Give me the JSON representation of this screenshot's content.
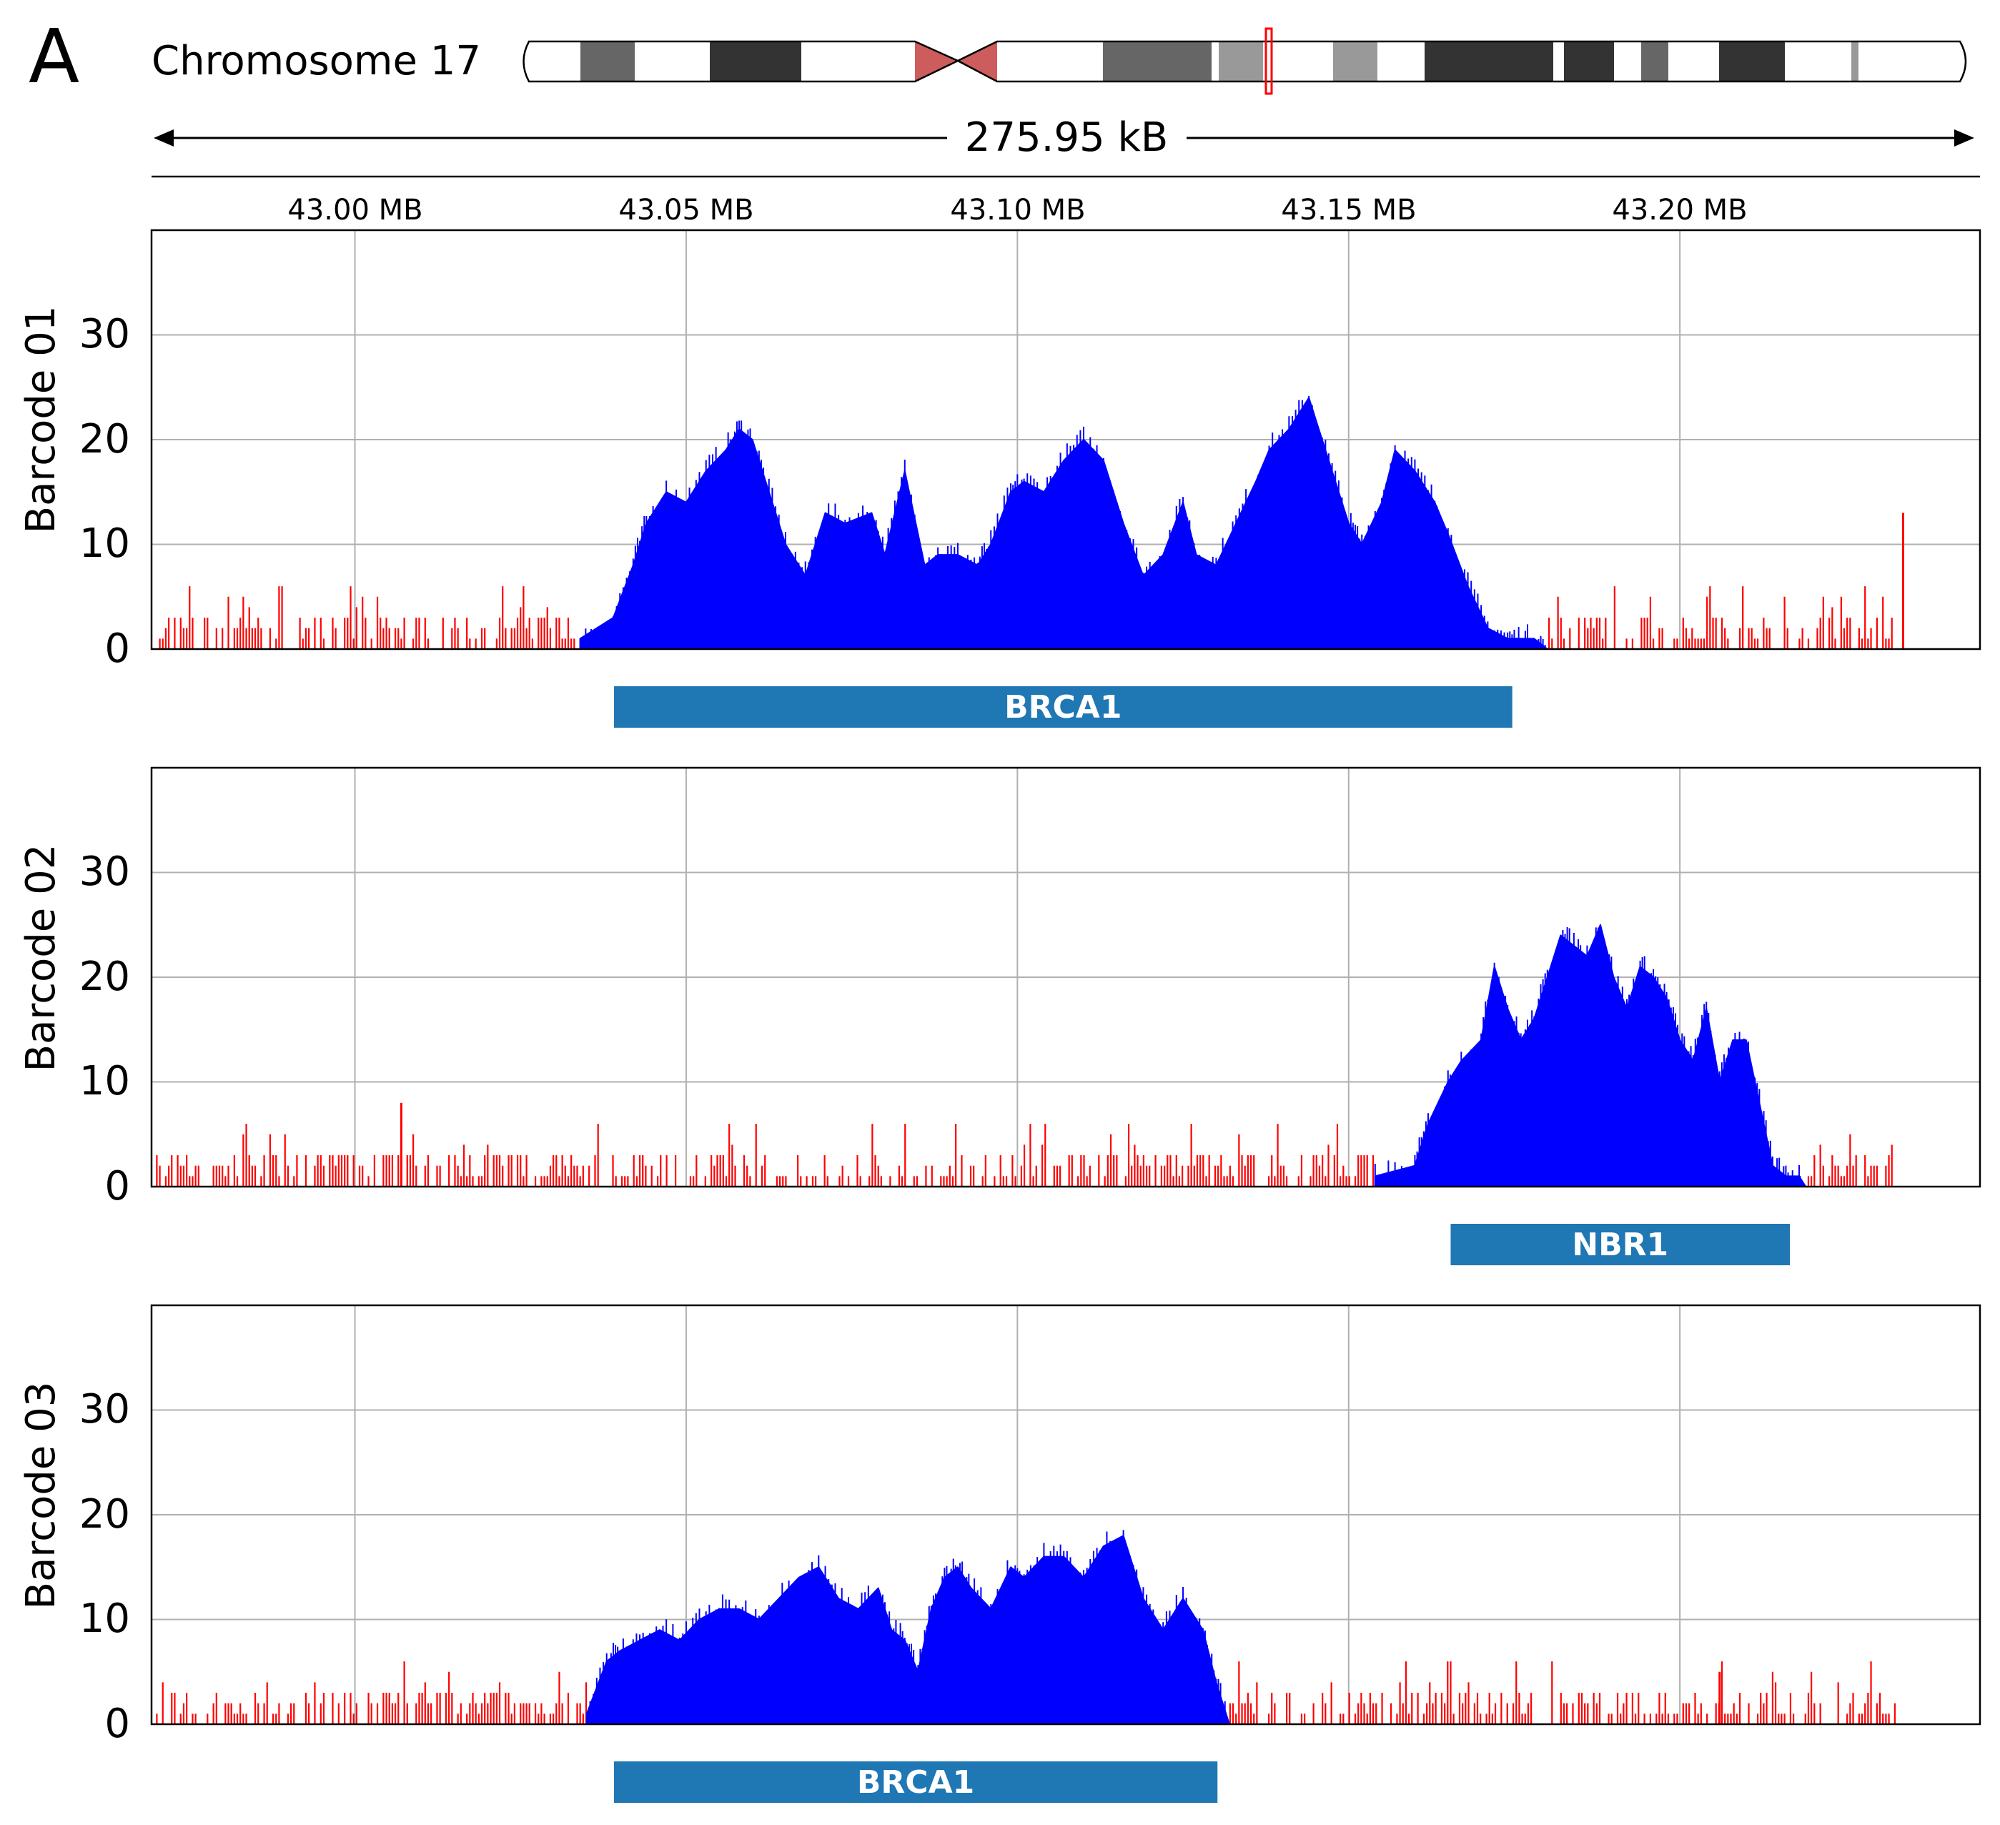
{
  "panel_letter": "A",
  "chromosome_label": "Chromosome 17",
  "span_label": "275.95 kB",
  "colors": {
    "coverage_on_target": "#0000ff",
    "coverage_off_target": "#ff0000",
    "gene_bar": "#1f77b4",
    "centromere": "#cd5c5c",
    "region_marker": "#ff0000",
    "grid": "#b0b0b0"
  },
  "chart_data": [
    {
      "type": "area",
      "ylabel": "Barcode 01",
      "x_ticks": [
        "43.00 MB",
        "43.05 MB",
        "43.10 MB",
        "43.15 MB",
        "43.20 MB"
      ],
      "x_tick_values_mb": [
        43.0,
        43.05,
        43.1,
        43.15,
        43.2
      ],
      "xlim_mb": [
        42.9693,
        43.2453
      ],
      "ylim": [
        0,
        40
      ],
      "y_ticks": [
        0,
        10,
        20,
        30
      ],
      "grid": true,
      "target_gene": {
        "name": "BRCA1",
        "start_mb": 43.0391,
        "end_mb": 43.1747
      },
      "on_target_region_mb": [
        43.034,
        43.18
      ],
      "coverage_profile": {
        "x_mb": [
          43.034,
          43.039,
          43.042,
          43.044,
          43.047,
          43.05,
          43.053,
          43.056,
          43.058,
          43.06,
          43.062,
          43.065,
          43.068,
          43.071,
          43.074,
          43.078,
          43.08,
          43.083,
          43.086,
          43.088,
          43.091,
          43.094,
          43.096,
          43.099,
          43.101,
          43.104,
          43.107,
          43.11,
          43.113,
          43.116,
          43.119,
          43.122,
          43.125,
          43.127,
          43.13,
          43.133,
          43.136,
          43.138,
          43.141,
          43.144,
          43.147,
          43.15,
          43.152,
          43.155,
          43.157,
          43.16,
          43.163,
          43.165,
          43.168,
          43.171,
          43.174,
          43.176,
          43.178,
          43.18
        ],
        "depth": [
          1,
          3,
          8,
          12,
          15,
          14,
          17,
          19,
          21,
          20,
          16,
          10,
          7,
          13,
          12,
          13,
          9,
          17,
          8,
          9,
          9,
          8,
          10,
          15,
          16,
          15,
          18,
          20,
          18,
          12,
          7,
          9,
          14,
          9,
          8,
          12,
          16,
          19,
          21,
          24,
          18,
          12,
          10,
          14,
          19,
          17,
          14,
          11,
          6,
          2,
          1,
          1,
          1,
          0
        ]
      },
      "off_target_peak": {
        "x_mb": 43.2337,
        "depth": 13
      }
    },
    {
      "type": "area",
      "ylabel": "Barcode 02",
      "x_ticks": [
        "43.00 MB",
        "43.05 MB",
        "43.10 MB",
        "43.15 MB",
        "43.20 MB"
      ],
      "x_tick_values_mb": [
        43.0,
        43.05,
        43.1,
        43.15,
        43.2
      ],
      "xlim_mb": [
        42.9693,
        43.2453
      ],
      "ylim": [
        0,
        40
      ],
      "y_ticks": [
        0,
        10,
        20,
        30
      ],
      "grid": true,
      "target_gene": {
        "name": "NBR1",
        "start_mb": 43.1654,
        "end_mb": 43.2166
      },
      "on_target_region_mb": [
        43.154,
        43.219
      ],
      "coverage_profile": {
        "x_mb": [
          43.154,
          43.16,
          43.162,
          43.165,
          43.167,
          43.17,
          43.172,
          43.174,
          43.176,
          43.178,
          43.18,
          43.182,
          43.184,
          43.186,
          43.188,
          43.19,
          43.192,
          43.194,
          43.196,
          43.198,
          43.2,
          43.202,
          43.204,
          43.206,
          43.208,
          43.21,
          43.212,
          43.214,
          43.216,
          43.218,
          43.219
        ],
        "depth": [
          1,
          2,
          6,
          10,
          12,
          14,
          21,
          17,
          14,
          16,
          20,
          24,
          23,
          22,
          25,
          20,
          17,
          21,
          20,
          18,
          14,
          12,
          17,
          10,
          14,
          14,
          8,
          2,
          1,
          1,
          0
        ]
      },
      "off_target_peak": {
        "x_mb": 43.007,
        "depth": 8
      }
    },
    {
      "type": "area",
      "ylabel": "Barcode 03",
      "x_ticks": [
        "43.00 MB",
        "43.05 MB",
        "43.10 MB",
        "43.15 MB",
        "43.20 MB"
      ],
      "x_tick_values_mb": [
        43.0,
        43.05,
        43.1,
        43.15,
        43.2
      ],
      "xlim_mb": [
        42.9693,
        43.2453
      ],
      "ylim": [
        0,
        40
      ],
      "y_ticks": [
        0,
        10,
        20,
        30
      ],
      "grid": true,
      "target_gene": {
        "name": "BRCA1",
        "start_mb": 43.0391,
        "end_mb": 43.1302
      },
      "on_target_region_mb": [
        43.035,
        43.132
      ],
      "coverage_profile": {
        "x_mb": [
          43.035,
          43.038,
          43.04,
          43.043,
          43.046,
          43.049,
          43.052,
          43.055,
          43.058,
          43.061,
          43.064,
          43.067,
          43.07,
          43.073,
          43.076,
          43.079,
          43.081,
          43.083,
          43.085,
          43.087,
          43.089,
          43.091,
          43.093,
          43.096,
          43.099,
          43.101,
          43.104,
          43.107,
          43.11,
          43.113,
          43.116,
          43.119,
          43.122,
          43.125,
          43.128,
          43.13,
          43.132
        ],
        "depth": [
          1,
          6,
          7,
          8,
          9,
          8,
          10,
          11,
          11,
          10,
          12,
          14,
          15,
          12,
          11,
          13,
          9,
          8,
          5,
          11,
          14,
          15,
          13,
          11,
          15,
          14,
          16,
          16,
          14,
          17,
          18,
          12,
          9,
          12,
          9,
          4,
          0
        ]
      },
      "off_target_peak": {
        "x_mb": 43.206,
        "depth": 5
      }
    }
  ]
}
